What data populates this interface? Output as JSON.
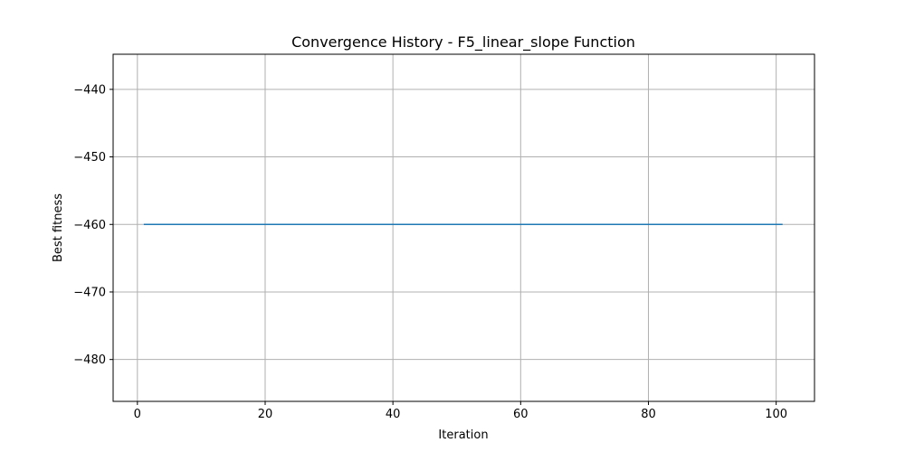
{
  "chart_data": {
    "type": "line",
    "title": "Convergence History - F5_linear_slope Function",
    "xlabel": "Iteration",
    "ylabel": "Best fitness",
    "xlim": [
      -3.8,
      106.0
    ],
    "ylim": [
      -486.2,
      -434.8
    ],
    "x_ticks": [
      0,
      20,
      40,
      60,
      80,
      100
    ],
    "y_ticks": [
      -440,
      -450,
      -460,
      -470,
      -480
    ],
    "x_tick_labels": [
      "0",
      "20",
      "40",
      "60",
      "80",
      "100"
    ],
    "y_tick_labels": [
      "−440",
      "−450",
      "−460",
      "−470",
      "−480"
    ],
    "grid": true,
    "series": [
      {
        "color": "#1f77b4",
        "points": [
          [
            1,
            -460.0
          ],
          [
            101,
            -460.0
          ]
        ]
      }
    ]
  }
}
